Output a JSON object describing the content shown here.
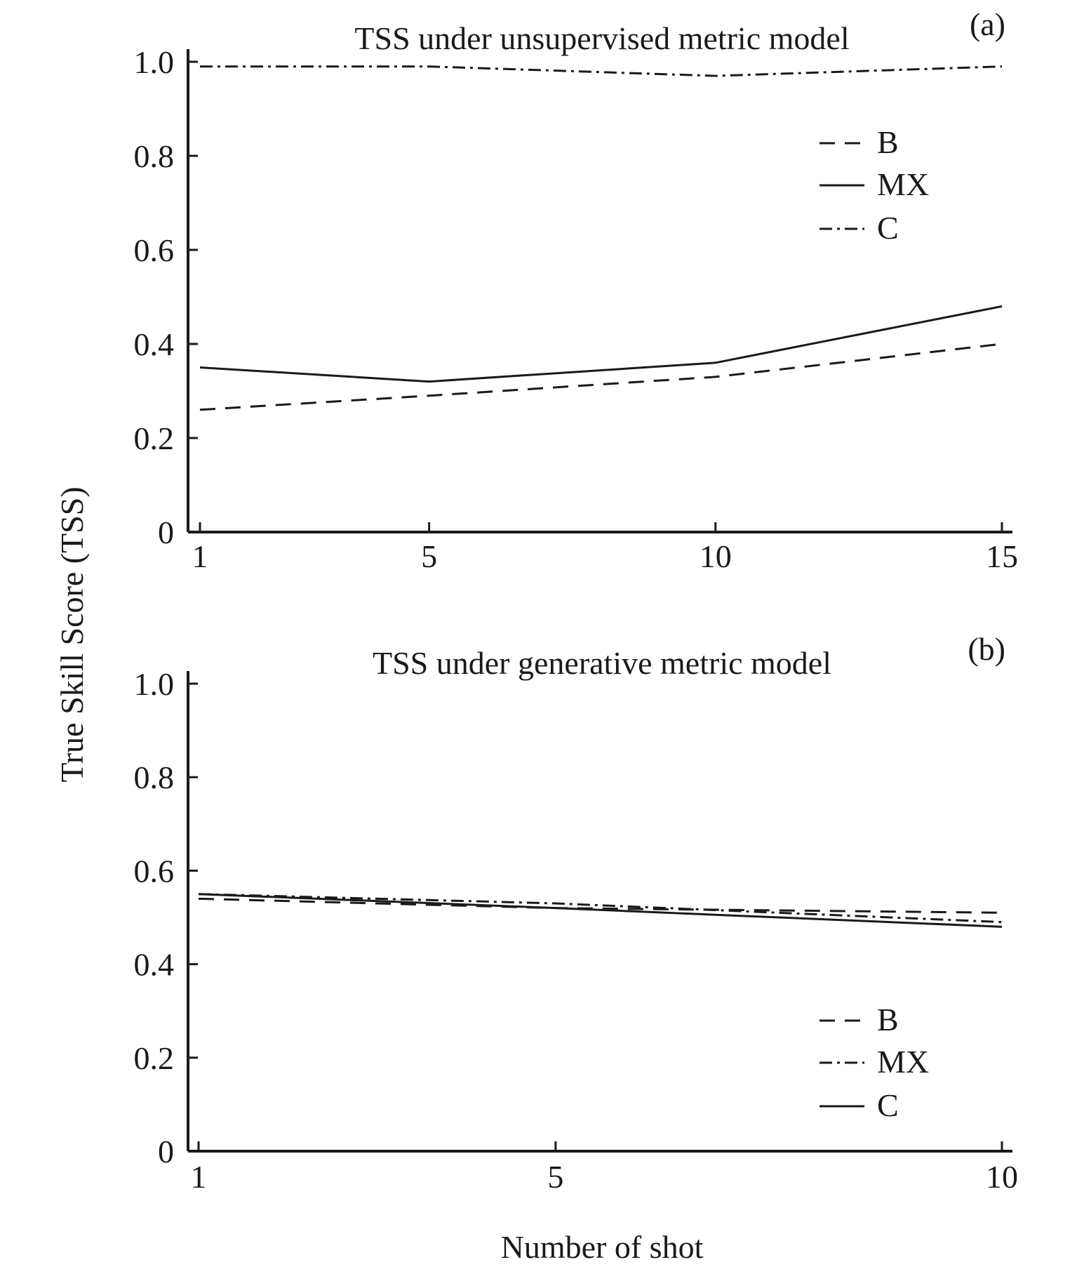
{
  "figure": {
    "ylabel": "True Skill Score (TSS)",
    "xlabel": "Number of shot"
  },
  "chart_data": [
    {
      "type": "line",
      "panel_label": "(a)",
      "title": "TSS under unsupervised metric model",
      "x": [
        1,
        5,
        10,
        15
      ],
      "xticks": [
        1,
        5,
        10,
        15
      ],
      "xlim": [
        1,
        15
      ],
      "ylim": [
        0,
        1.0
      ],
      "yticks": [
        0,
        0.2,
        0.4,
        0.6,
        0.8,
        1.0
      ],
      "ytick_labels": [
        "0",
        "0.2",
        "0.4",
        "0.6",
        "0.8",
        "1.0"
      ],
      "grid": false,
      "legend_position": "top-right",
      "series": [
        {
          "name": "B",
          "style": "dashed",
          "values": [
            0.26,
            0.29,
            0.33,
            0.4
          ]
        },
        {
          "name": "MX",
          "style": "solid",
          "values": [
            0.35,
            0.32,
            0.36,
            0.48
          ]
        },
        {
          "name": "C",
          "style": "dash-dot",
          "values": [
            0.99,
            0.99,
            0.97,
            0.99
          ]
        }
      ]
    },
    {
      "type": "line",
      "panel_label": "(b)",
      "title": "TSS under generative metric model",
      "x": [
        1,
        5,
        10
      ],
      "xticks": [
        1,
        5,
        10
      ],
      "xlim": [
        1,
        10
      ],
      "ylim": [
        0,
        1.0
      ],
      "yticks": [
        0,
        0.2,
        0.4,
        0.6,
        0.8,
        1.0
      ],
      "ytick_labels": [
        "0",
        "0.2",
        "0.4",
        "0.6",
        "0.8",
        "1.0"
      ],
      "grid": false,
      "legend_position": "bottom-right",
      "series": [
        {
          "name": "B",
          "style": "dashed",
          "values": [
            0.54,
            0.52,
            0.51
          ]
        },
        {
          "name": "MX",
          "style": "dash-dot",
          "values": [
            0.55,
            0.53,
            0.49
          ]
        },
        {
          "name": "C",
          "style": "solid",
          "values": [
            0.55,
            0.52,
            0.48
          ]
        }
      ]
    }
  ]
}
